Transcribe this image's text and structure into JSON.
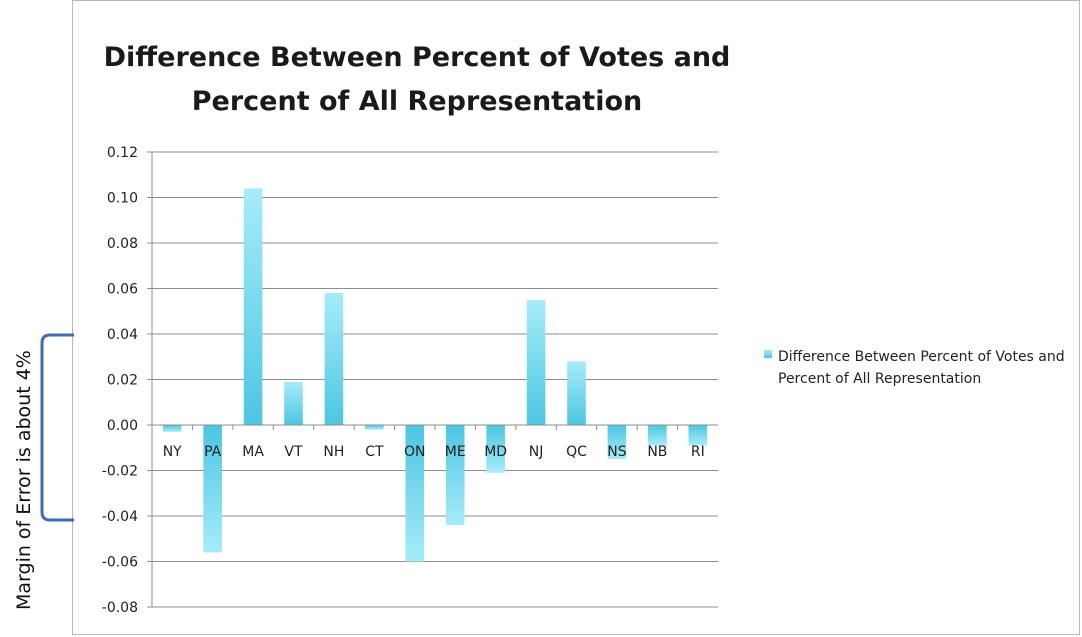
{
  "annotation": {
    "text": "Margin of Error is about 4%",
    "bracket_color": "#3d6db5"
  },
  "chart_data": {
    "type": "bar",
    "title_lines": [
      "Difference Between Percent of Votes and",
      "Percent of All Representation"
    ],
    "categories": [
      "NY",
      "PA",
      "MA",
      "VT",
      "NH",
      "CT",
      "ON",
      "ME",
      "MD",
      "NJ",
      "QC",
      "NS",
      "NB",
      "RI"
    ],
    "series": [
      {
        "name": "Difference Between Percent of Votes and Percent of All Representation",
        "values": [
          -0.003,
          -0.056,
          0.104,
          0.019,
          0.058,
          -0.002,
          -0.06,
          -0.044,
          -0.021,
          0.055,
          0.028,
          -0.015,
          -0.009,
          -0.009
        ],
        "color_top": "#a6ecfa",
        "color_bottom": "#4cc6e2"
      }
    ],
    "yticks": [
      "0.12",
      "0.10",
      "0.08",
      "0.06",
      "0.04",
      "0.02",
      "0.00",
      "-0.02",
      "-0.04",
      "-0.06",
      "-0.08"
    ],
    "ylim": [
      -0.08,
      0.12
    ],
    "grid": true,
    "legend_position": "right"
  }
}
